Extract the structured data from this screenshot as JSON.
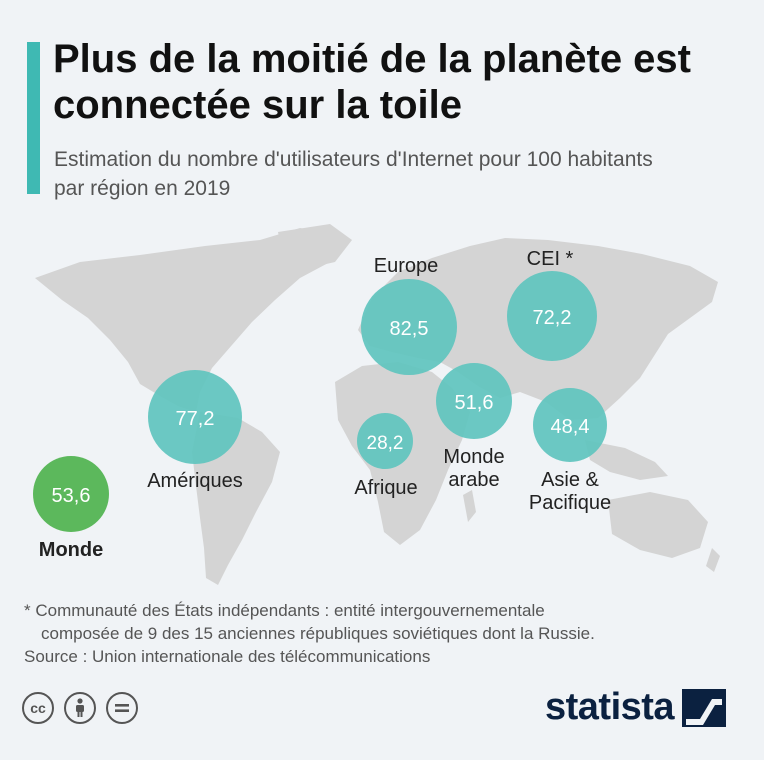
{
  "header": {
    "title": "Plus de la moitié de la planète est connectée sur la toile",
    "subtitle": "Estimation du nombre d'utilisateurs d'Internet pour 100 habitants par région en 2019"
  },
  "chart_data": {
    "type": "bubble-map",
    "title": "Plus de la moitié de la planète est connectée sur la toile",
    "subtitle": "Estimation du nombre d'utilisateurs d'Internet pour 100 habitants par région en 2019",
    "categories": [
      "Europe",
      "CEI *",
      "Amériques",
      "Afrique",
      "Monde arabe",
      "Asie & Pacifique",
      "Monde"
    ],
    "values": [
      82.5,
      72.2,
      77.2,
      28.2,
      51.6,
      48.4,
      53.6
    ],
    "value_labels": [
      "82,5",
      "72,2",
      "77,2",
      "28,2",
      "51,6",
      "48,4",
      "53,6"
    ],
    "colors": {
      "regions": "#5fc4be",
      "world": "#5cb85c"
    }
  },
  "labels": {
    "europe": "Europe",
    "cei": "CEI *",
    "ameriques": "Amériques",
    "afrique": "Afrique",
    "monde_arabe_1": "Monde",
    "monde_arabe_2": "arabe",
    "asie_1": "Asie &",
    "asie_2": "Pacifique",
    "monde": "Monde"
  },
  "footnote": {
    "line1": "* Communauté des États indépendants : entité intergouvernementale",
    "line2": "composée de 9 des 15 anciennes républiques soviétiques dont la Russie.",
    "source": "Source : Union internationale des télécommunications"
  },
  "license_icons": [
    "cc-icon",
    "attribution-icon",
    "no-derivatives-icon"
  ],
  "brand": {
    "name": "statista",
    "color": "#0b2140"
  }
}
